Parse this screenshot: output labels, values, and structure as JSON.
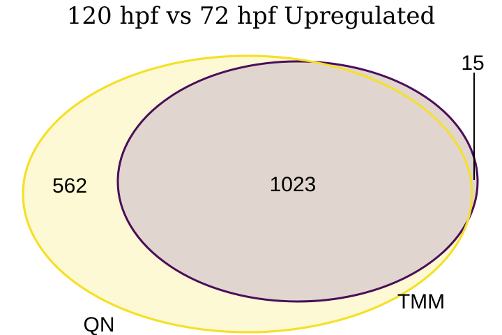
{
  "title": "120 hpf vs 72 hpf Upregulated",
  "sets": [
    {
      "name": "QN",
      "color": "#F5E027",
      "fill": "#FCF9D4"
    },
    {
      "name": "TMM",
      "color": "#4B0E59",
      "fill": "#E0D6CF"
    }
  ],
  "regions": {
    "qn_only": "562",
    "both": "1023",
    "tmm_only": "15"
  }
}
